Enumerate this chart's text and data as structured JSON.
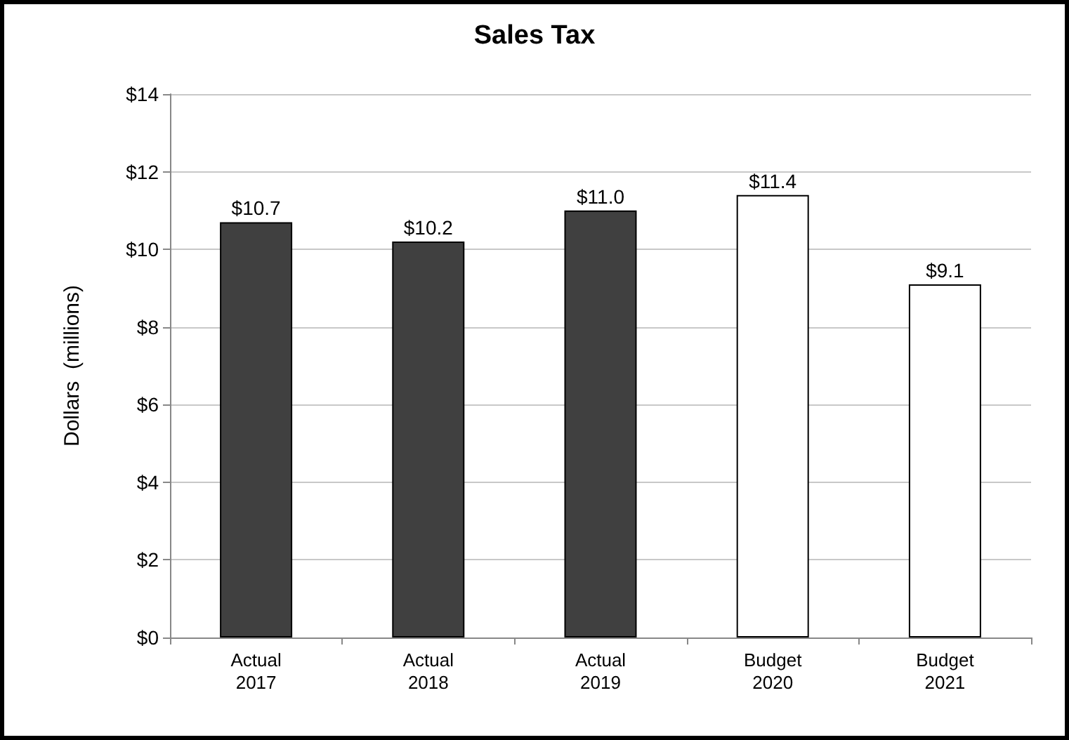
{
  "chart_data": {
    "type": "bar",
    "title": "Sales Tax",
    "ylabel": "Dollars  (millions)",
    "categories": [
      "Actual\n2017",
      "Actual\n2018",
      "Actual\n2019",
      "Budget\n2020",
      "Budget\n2021"
    ],
    "values": [
      10.7,
      10.2,
      11.0,
      11.4,
      9.1
    ],
    "colors": [
      "#404040",
      "#404040",
      "#404040",
      "#ffffff",
      "#ffffff"
    ],
    "value_labels": [
      "$10.7",
      "$10.2",
      "$11.0",
      "$11.4",
      "$9.1"
    ],
    "ylim": [
      0,
      14
    ],
    "yticks": [
      {
        "value": 0,
        "label": "$0"
      },
      {
        "value": 2,
        "label": "$2"
      },
      {
        "value": 4,
        "label": "$4"
      },
      {
        "value": 6,
        "label": "$6"
      },
      {
        "value": 8,
        "label": "$8"
      },
      {
        "value": 10,
        "label": "$10"
      },
      {
        "value": 12,
        "label": "$12"
      },
      {
        "value": 14,
        "label": "$14"
      }
    ],
    "grid": "y"
  }
}
